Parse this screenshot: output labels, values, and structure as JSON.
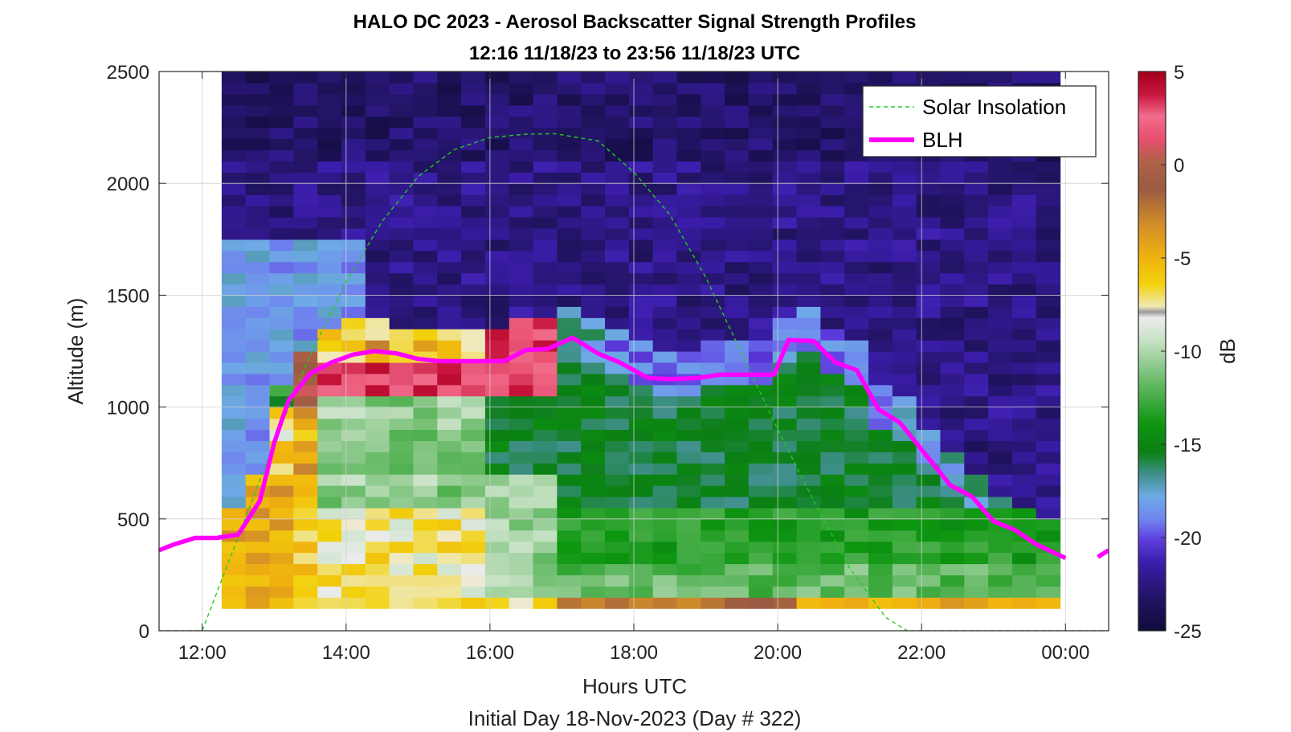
{
  "chart_data": {
    "type": "heatmap",
    "title": "HALO DC 2023 - Aerosol Backscatter Signal Strength Profiles",
    "subtitle": "12:16 11/18/23 to 23:56 11/18/23  UTC",
    "xlabel": "Hours UTC",
    "footer": "Initial Day 18-Nov-2023 (Day # 322)",
    "ylabel": "Altitude (m)",
    "colorbar_label": "dB",
    "xlim": [
      11.4,
      24.6
    ],
    "ylim": [
      0,
      2500
    ],
    "x_ticks": [
      12,
      14,
      16,
      18,
      20,
      22,
      24
    ],
    "x_tick_labels": [
      "12:00",
      "14:00",
      "16:00",
      "18:00",
      "20:00",
      "22:00",
      "00:00"
    ],
    "y_ticks": [
      0,
      500,
      1000,
      1500,
      2000,
      2500
    ],
    "y_tick_labels": [
      "0",
      "500",
      "1000",
      "1500",
      "2000",
      "2500"
    ],
    "clim": [
      -25,
      5
    ],
    "colorbar_ticks": [
      5,
      0,
      -5,
      -10,
      -15,
      -20,
      -25
    ],
    "colorbar_tick_labels": [
      "5",
      "0",
      "-5",
      "-10",
      "-15",
      "-20",
      "-25"
    ],
    "grid": true,
    "legend_position": "top-right",
    "heatmap": {
      "time_start": 12.27,
      "time_step": 0.333,
      "alt_start": 100,
      "alt_step": 50,
      "n_time": 35,
      "n_alt": 48
    },
    "series": [
      {
        "name": "Solar Insolation",
        "color": "#22cc22",
        "style": "dashed",
        "x": [
          11.4,
          12.0,
          12.5,
          13.0,
          13.5,
          14.0,
          14.5,
          15.0,
          15.5,
          16.0,
          16.5,
          16.9,
          17.5,
          18.0,
          18.5,
          19.0,
          19.5,
          20.0,
          20.5,
          21.0,
          21.5,
          21.8,
          22.0,
          24.6
        ],
        "y": [
          0,
          0,
          420,
          840,
          1230,
          1560,
          1830,
          2030,
          2150,
          2205,
          2220,
          2222,
          2190,
          2050,
          1860,
          1580,
          1240,
          900,
          580,
          280,
          60,
          0,
          0,
          0
        ]
      },
      {
        "name": "BLH",
        "color": "#ff00ff",
        "style": "solid",
        "segments": [
          {
            "x": [
              11.4,
              11.6,
              11.9,
              12.2,
              12.5,
              12.8,
              13.0,
              13.2,
              13.5,
              13.8,
              14.1,
              14.4,
              14.7,
              15.0,
              15.3,
              15.6,
              15.9,
              16.2,
              16.5,
              16.8,
              17.15,
              17.5,
              17.8,
              18.2,
              18.5,
              18.9,
              19.2,
              19.6,
              19.95,
              20.15,
              20.5,
              20.8,
              21.1,
              21.4,
              21.7,
              22.0,
              22.4,
              22.7,
              23.0,
              23.3,
              23.6,
              24.0
            ],
            "y": [
              360,
              385,
              415,
              415,
              430,
              580,
              840,
              1030,
              1150,
              1200,
              1235,
              1250,
              1240,
              1215,
              1205,
              1205,
              1205,
              1205,
              1255,
              1260,
              1310,
              1240,
              1200,
              1130,
              1125,
              1130,
              1145,
              1145,
              1145,
              1300,
              1295,
              1200,
              1165,
              990,
              930,
              810,
              650,
              600,
              490,
              450,
              385,
              325
            ]
          },
          {
            "x": [
              24.45,
              24.6
            ],
            "y": [
              330,
              360
            ]
          }
        ]
      }
    ]
  }
}
